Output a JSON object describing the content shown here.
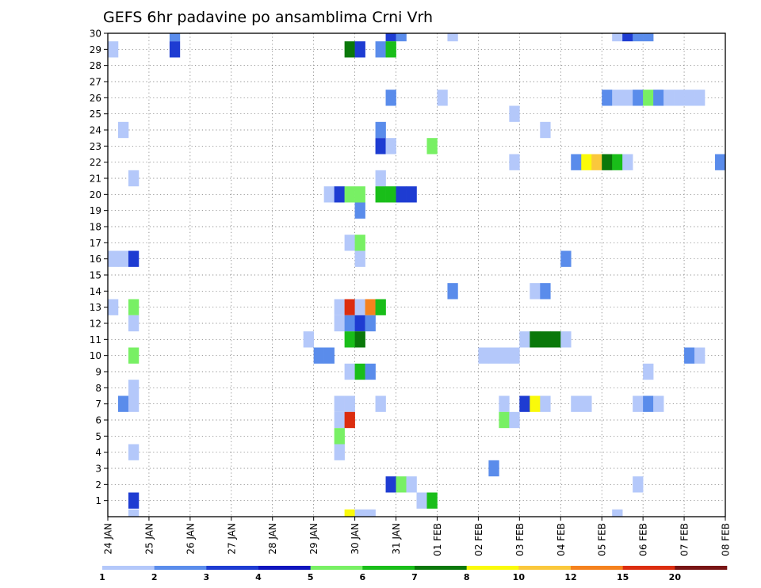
{
  "chart_data": {
    "type": "heatmap",
    "title": "GEFS 6hr padavine po ansamblima Crni Vrh",
    "xlabel": "",
    "ylabel": "",
    "x_ticks": [
      "24 JAN",
      "25 JAN",
      "26 JAN",
      "27 JAN",
      "28 JAN",
      "29 JAN",
      "30 JAN",
      "31 JAN",
      "01 FEB",
      "02 FEB",
      "03 FEB",
      "04 FEB",
      "05 FEB",
      "06 FEB",
      "07 FEB",
      "08 FEB"
    ],
    "y_ticks": [
      "1",
      "2",
      "3",
      "4",
      "5",
      "6",
      "7",
      "8",
      "9",
      "10",
      "11",
      "12",
      "13",
      "14",
      "15",
      "16",
      "17",
      "18",
      "19",
      "20",
      "21",
      "22",
      "23",
      "24",
      "25",
      "26",
      "27",
      "28",
      "29",
      "30"
    ],
    "xlim_day_offset": [
      0,
      15
    ],
    "ylim": [
      0,
      30
    ],
    "grid": true,
    "legend": {
      "position": "bottom",
      "labels": [
        "1",
        "2",
        "3",
        "4",
        "5",
        "6",
        "7",
        "8",
        "10",
        "12",
        "15",
        "20"
      ],
      "colors": [
        "#b4c8fa",
        "#5a8ceb",
        "#1e3cd2",
        "#0e14be",
        "#78f064",
        "#19be19",
        "#0a780a",
        "#fafa0a",
        "#fac83c",
        "#f5821e",
        "#dc2d0f",
        "#781414"
      ]
    },
    "colors": {
      "1": "#b4c8fa",
      "2": "#5a8ceb",
      "3": "#1e3cd2",
      "5": "#78f064",
      "6": "#19be19",
      "7": "#0a780a",
      "8": "#fafa0a",
      "10": "#fac83c",
      "12": "#f5821e",
      "15": "#dc2d0f"
    },
    "cells_note": "each cell: [member, x_in_6h_steps_from_24_JAN_00, precip_class]",
    "cells": [
      [
        30,
        6,
        2
      ],
      [
        30,
        27,
        3
      ],
      [
        30,
        28,
        2
      ],
      [
        30,
        33,
        1
      ],
      [
        30,
        49,
        1
      ],
      [
        30,
        50,
        3
      ],
      [
        30,
        51,
        2
      ],
      [
        30,
        52,
        2
      ],
      [
        29,
        0,
        1
      ],
      [
        29,
        6,
        3
      ],
      [
        29,
        23,
        7
      ],
      [
        29,
        24,
        3
      ],
      [
        29,
        26,
        2
      ],
      [
        29,
        27,
        6
      ],
      [
        26,
        27,
        2
      ],
      [
        26,
        32,
        1
      ],
      [
        26,
        48,
        2
      ],
      [
        26,
        49,
        1
      ],
      [
        26,
        50,
        1
      ],
      [
        26,
        51,
        2
      ],
      [
        26,
        52,
        5
      ],
      [
        26,
        53,
        2
      ],
      [
        26,
        54,
        1
      ],
      [
        26,
        55,
        1
      ],
      [
        26,
        56,
        1
      ],
      [
        26,
        57,
        1
      ],
      [
        25,
        39,
        1
      ],
      [
        24,
        1,
        1
      ],
      [
        24,
        26,
        2
      ],
      [
        24,
        42,
        1
      ],
      [
        23,
        26,
        3
      ],
      [
        23,
        27,
        1
      ],
      [
        23,
        31,
        5
      ],
      [
        22,
        39,
        1
      ],
      [
        22,
        45,
        2
      ],
      [
        22,
        46,
        8
      ],
      [
        22,
        47,
        10
      ],
      [
        22,
        48,
        7
      ],
      [
        22,
        49,
        6
      ],
      [
        22,
        50,
        1
      ],
      [
        22,
        59,
        2
      ],
      [
        21,
        2,
        1
      ],
      [
        21,
        26,
        1
      ],
      [
        20,
        21,
        1
      ],
      [
        20,
        22,
        3
      ],
      [
        20,
        23,
        5
      ],
      [
        20,
        24,
        5
      ],
      [
        20,
        26,
        6
      ],
      [
        20,
        27,
        6
      ],
      [
        20,
        28,
        3
      ],
      [
        20,
        29,
        3
      ],
      [
        19,
        24,
        2
      ],
      [
        17,
        23,
        1
      ],
      [
        17,
        24,
        5
      ],
      [
        16,
        0,
        1
      ],
      [
        16,
        1,
        1
      ],
      [
        16,
        2,
        3
      ],
      [
        16,
        24,
        1
      ],
      [
        16,
        44,
        2
      ],
      [
        14,
        33,
        2
      ],
      [
        14,
        41,
        1
      ],
      [
        14,
        42,
        2
      ],
      [
        13,
        0,
        1
      ],
      [
        13,
        2,
        5
      ],
      [
        13,
        22,
        1
      ],
      [
        13,
        23,
        15
      ],
      [
        13,
        24,
        1
      ],
      [
        13,
        25,
        12
      ],
      [
        13,
        26,
        6
      ],
      [
        12,
        2,
        1
      ],
      [
        12,
        22,
        1
      ],
      [
        12,
        23,
        2
      ],
      [
        12,
        24,
        3
      ],
      [
        12,
        25,
        2
      ],
      [
        11,
        19,
        1
      ],
      [
        11,
        23,
        6
      ],
      [
        11,
        24,
        7
      ],
      [
        11,
        40,
        1
      ],
      [
        11,
        41,
        7
      ],
      [
        11,
        42,
        7
      ],
      [
        11,
        43,
        7
      ],
      [
        11,
        44,
        1
      ],
      [
        10,
        2,
        5
      ],
      [
        10,
        20,
        2
      ],
      [
        10,
        21,
        2
      ],
      [
        10,
        36,
        1
      ],
      [
        10,
        37,
        1
      ],
      [
        10,
        38,
        1
      ],
      [
        10,
        39,
        1
      ],
      [
        10,
        56,
        2
      ],
      [
        10,
        57,
        1
      ],
      [
        9,
        23,
        1
      ],
      [
        9,
        24,
        6
      ],
      [
        9,
        25,
        2
      ],
      [
        9,
        52,
        1
      ],
      [
        8,
        2,
        1
      ],
      [
        7,
        1,
        2
      ],
      [
        7,
        2,
        1
      ],
      [
        7,
        22,
        1
      ],
      [
        7,
        23,
        1
      ],
      [
        7,
        26,
        1
      ],
      [
        7,
        38,
        1
      ],
      [
        7,
        40,
        3
      ],
      [
        7,
        41,
        8
      ],
      [
        7,
        42,
        1
      ],
      [
        7,
        45,
        1
      ],
      [
        7,
        46,
        1
      ],
      [
        7,
        51,
        1
      ],
      [
        7,
        52,
        2
      ],
      [
        7,
        53,
        1
      ],
      [
        6,
        22,
        1
      ],
      [
        6,
        23,
        15
      ],
      [
        6,
        38,
        5
      ],
      [
        6,
        39,
        1
      ],
      [
        5,
        22,
        5
      ],
      [
        4,
        2,
        1
      ],
      [
        4,
        22,
        1
      ],
      [
        3,
        37,
        2
      ],
      [
        2,
        27,
        3
      ],
      [
        2,
        28,
        5
      ],
      [
        2,
        29,
        1
      ],
      [
        2,
        51,
        1
      ],
      [
        1,
        2,
        3
      ],
      [
        1,
        30,
        1
      ],
      [
        1,
        31,
        6
      ],
      [
        0,
        2,
        1
      ],
      [
        0,
        23,
        8
      ],
      [
        0,
        24,
        1
      ],
      [
        0,
        25,
        1
      ],
      [
        0,
        49,
        1
      ]
    ]
  }
}
